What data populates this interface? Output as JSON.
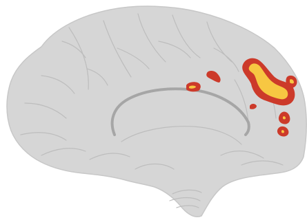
{
  "figure": {
    "brain_fill": "#d6d6d6",
    "brain_edge": "#c7c7c7",
    "fold_color": "#bdbdbd",
    "callosum_color": "#a6a6a6",
    "activation_outer": "#cc3a2a",
    "activation_inner": "#f7c742",
    "background": "#ffffff"
  }
}
